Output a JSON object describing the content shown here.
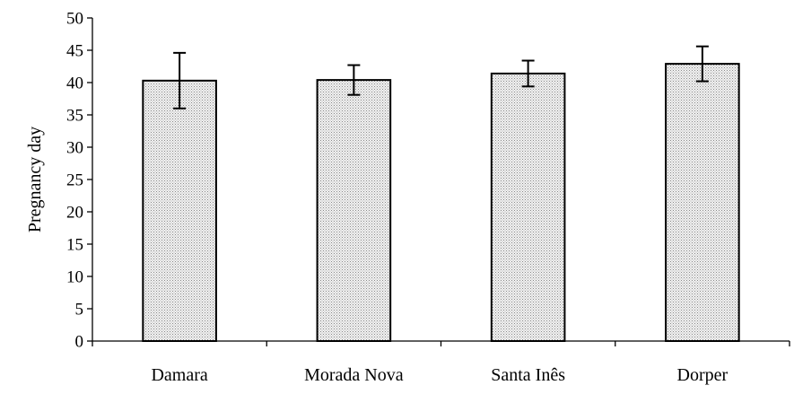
{
  "chart_data": {
    "type": "bar",
    "categories": [
      "Damara",
      "Morada Nova",
      "Santa Inês",
      "Dorper"
    ],
    "values": [
      40.3,
      40.4,
      41.4,
      42.9
    ],
    "errors": [
      4.3,
      2.3,
      2.0,
      2.7
    ],
    "ylabel": "Pregnancy day",
    "xlabel": "",
    "title": "",
    "ylim": [
      0,
      50
    ],
    "yticks": [
      0,
      5,
      10,
      15,
      20,
      25,
      30,
      35,
      40,
      45,
      50
    ],
    "ytick_labels": [
      "0",
      "5",
      "10",
      "15",
      "20",
      "25",
      "30",
      "35",
      "40",
      "45",
      "50"
    ],
    "grid": false,
    "legend": "none",
    "bar_fill_pattern": "fine-dots",
    "bar_color": "#e8e8e8"
  }
}
